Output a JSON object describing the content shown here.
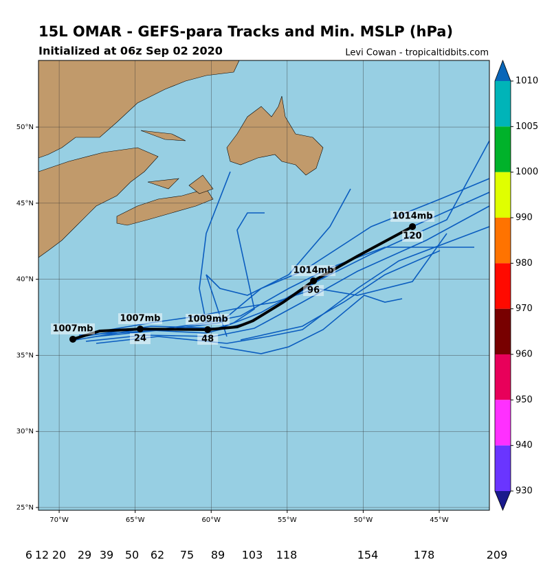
{
  "header": {
    "title": "15L OMAR - GEFS-para Tracks and Min. MSLP (hPa)",
    "subtitle": "Initialized at 06z Sep 02 2020",
    "credit": "Levi Cowan - tropicaltidbits.com"
  },
  "map": {
    "xlim": [
      -71.36,
      -41.7
    ],
    "ylim": [
      24.82,
      54.38
    ],
    "xticks": [
      {
        "value": -70,
        "label": "70°W"
      },
      {
        "value": -65,
        "label": "65°W"
      },
      {
        "value": -60,
        "label": "60°W"
      },
      {
        "value": -55,
        "label": "55°W"
      },
      {
        "value": -50,
        "label": "50°W"
      },
      {
        "value": -45,
        "label": "45°W"
      }
    ],
    "yticks": [
      {
        "value": 25,
        "label": "25°N"
      },
      {
        "value": 30,
        "label": "30°N"
      },
      {
        "value": 35,
        "label": "35°N"
      },
      {
        "value": 40,
        "label": "40°N"
      },
      {
        "value": 45,
        "label": "45°N"
      },
      {
        "value": 50,
        "label": "50°N"
      }
    ],
    "grid": true,
    "ocean_color": "#97cfe3",
    "land_color": "#c19a6b",
    "track_color": "#0a5cbf",
    "mean_track": {
      "color": "#000000",
      "lon": [
        -69.1,
        -67.33,
        -64.67,
        -60.23,
        -58.29,
        -57.25,
        -55.26,
        -53.27,
        -50.38,
        -46.76
      ],
      "lat": [
        36.06,
        36.6,
        36.73,
        36.69,
        36.87,
        37.27,
        38.49,
        39.89,
        41.52,
        43.46
      ],
      "pressure_labels": [
        "1007mb",
        null,
        "1007mb",
        "1009mb",
        null,
        null,
        null,
        "1014mb",
        null,
        "1014mb"
      ],
      "hour_labels": [
        null,
        null,
        24,
        48,
        null,
        null,
        null,
        96,
        null,
        120
      ]
    }
  },
  "colorbar": {
    "ticks": [
      1010,
      1005,
      1000,
      990,
      980,
      970,
      960,
      950,
      940,
      930
    ],
    "colors": [
      "#0a66b8",
      "#00b4b8",
      "#00b22a",
      "#e0ff00",
      "#ff7300",
      "#ff0a00",
      "#780000",
      "#e8005a",
      "#ff30ff",
      "#6a35ff",
      "#1a1a8c"
    ]
  },
  "footer": {
    "numbers": [
      6,
      12,
      20,
      29,
      39,
      50,
      62,
      75,
      89,
      103,
      118,
      154,
      178,
      209
    ]
  }
}
